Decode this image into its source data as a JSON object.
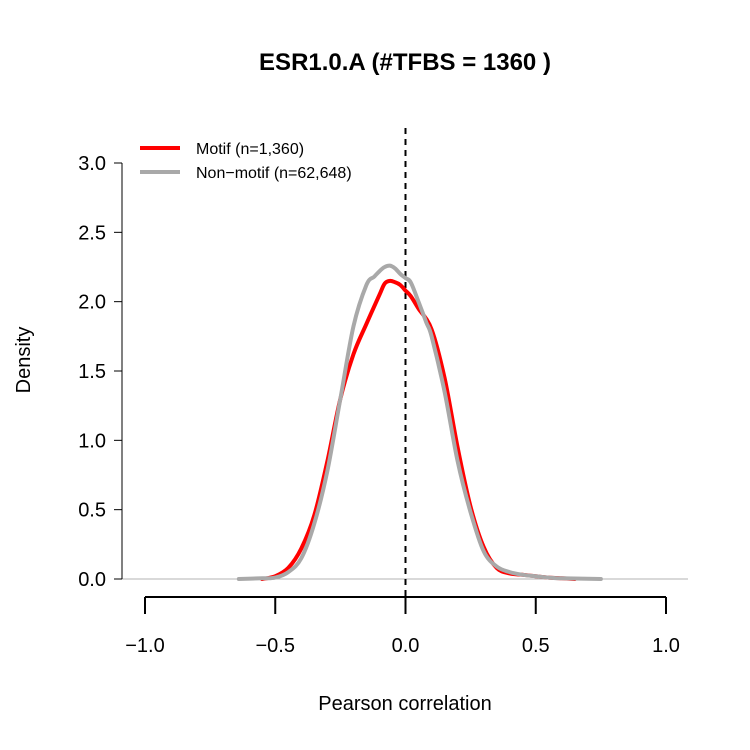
{
  "chart_data": {
    "type": "line",
    "title": "ESR1.0.A (#TFBS = 1360 )",
    "xlabel": "Pearson correlation",
    "ylabel": "Density",
    "xlim": [
      -1.0,
      1.0
    ],
    "ylim": [
      0,
      3.0
    ],
    "x_ticks": [
      "−1.0",
      "−0.5",
      "0.0",
      "0.5",
      "1.0"
    ],
    "x_tick_values": [
      -1.0,
      -0.5,
      0.0,
      0.5,
      1.0
    ],
    "y_ticks": [
      "0.0",
      "0.5",
      "1.0",
      "1.5",
      "2.0",
      "2.5",
      "3.0"
    ],
    "y_tick_values": [
      0.0,
      0.5,
      1.0,
      1.5,
      2.0,
      2.5,
      3.0
    ],
    "reference_line": {
      "x": 0.0,
      "style": "dashed"
    },
    "baseline_y": 0,
    "legend_position": "top-left",
    "series": [
      {
        "name": "Motif (n=1,360)",
        "color": "#ff0000",
        "x": [
          -0.55,
          -0.5,
          -0.45,
          -0.4,
          -0.35,
          -0.3,
          -0.25,
          -0.2,
          -0.15,
          -0.1,
          -0.08,
          -0.06,
          -0.04,
          -0.02,
          0.0,
          0.02,
          0.05,
          0.1,
          0.15,
          0.2,
          0.25,
          0.3,
          0.35,
          0.4,
          0.45,
          0.5,
          0.55,
          0.6,
          0.65
        ],
        "y": [
          0.0,
          0.02,
          0.08,
          0.22,
          0.46,
          0.85,
          1.3,
          1.62,
          1.84,
          2.05,
          2.13,
          2.15,
          2.14,
          2.12,
          2.08,
          2.04,
          1.95,
          1.8,
          1.45,
          0.95,
          0.52,
          0.23,
          0.08,
          0.04,
          0.03,
          0.02,
          0.01,
          0.005,
          0.0
        ]
      },
      {
        "name": "Non−motif (n=62,648)",
        "color": "#a9a9a9",
        "x": [
          -0.64,
          -0.55,
          -0.5,
          -0.45,
          -0.4,
          -0.35,
          -0.3,
          -0.25,
          -0.2,
          -0.15,
          -0.12,
          -0.1,
          -0.08,
          -0.06,
          -0.04,
          -0.02,
          0.0,
          0.02,
          0.05,
          0.08,
          0.1,
          0.15,
          0.2,
          0.25,
          0.3,
          0.35,
          0.4,
          0.45,
          0.5,
          0.55,
          0.6,
          0.75
        ],
        "y": [
          0.0,
          0.005,
          0.01,
          0.05,
          0.15,
          0.4,
          0.78,
          1.3,
          1.82,
          2.12,
          2.18,
          2.22,
          2.25,
          2.26,
          2.24,
          2.2,
          2.17,
          2.14,
          2.0,
          1.85,
          1.75,
          1.35,
          0.85,
          0.48,
          0.2,
          0.09,
          0.05,
          0.03,
          0.02,
          0.01,
          0.005,
          0.0
        ]
      }
    ]
  }
}
